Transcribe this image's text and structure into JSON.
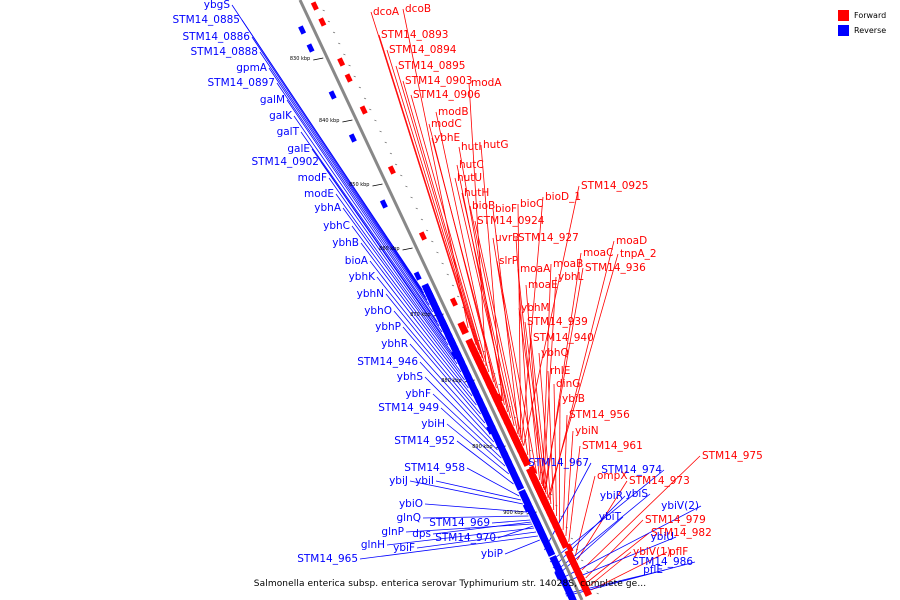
{
  "caption": "Salmonella enterica subsp. enterica serovar Typhimurium str. 14028S, complete ge...",
  "legend": {
    "forward_label": "Forward",
    "reverse_label": "Reverse",
    "forward_color": "#ff0000",
    "reverse_color": "#0000ff"
  },
  "axis": {
    "unit": "kbp",
    "ticks": [
      "830 kbp",
      "840 kbp",
      "850 kbp",
      "860 kbp",
      "870 kbp",
      "880 kbp",
      "890 kbp",
      "900 kbp"
    ]
  },
  "forward_genes": [
    "dcoA",
    "dcoB",
    "STM14_0893",
    "STM14_0894",
    "STM14_0895",
    "STM14_0903",
    "modA",
    "STM14_0906",
    "modB",
    "modC",
    "ybhE",
    "hutI",
    "hutG",
    "hutC",
    "hutU",
    "hutH",
    "STM14_0925",
    "bioD_1",
    "bioC",
    "bioF",
    "bioB",
    "STM14_0924",
    "uvrB",
    "STM14_927",
    "moaD",
    "tnpA_2",
    "moaC",
    "moaB",
    "STM14_936",
    "slrP",
    "moaA",
    "ybhL",
    "moaE",
    "ybhM",
    "STM14_939",
    "STM14_940",
    "ybhQ",
    "rhlE",
    "dinG",
    "ybiB",
    "STM14_956",
    "ybiN",
    "STM14_961",
    "STM14_975",
    "ompX",
    "STM14_973",
    "STM14_979",
    "STM14_982",
    "ybiV(1)",
    "pflF"
  ],
  "reverse_genes": [
    "ybgS",
    "STM14_0885",
    "STM14_0886",
    "STM14_0888",
    "gpmA",
    "STM14_0897",
    "galM",
    "galK",
    "galT",
    "galE",
    "STM14_0902",
    "modF",
    "modE",
    "ybhA",
    "ybhC",
    "ybhB",
    "bioA",
    "ybhK",
    "ybhN",
    "ybhO",
    "ybhP",
    "ybhR",
    "STM14_946",
    "ybhS",
    "ybhF",
    "STM14_949",
    "ybiH",
    "STM14_952",
    "STM14_958",
    "ybiI",
    "ybiJ",
    "ybiO",
    "glnQ",
    "STM14_969",
    "dps",
    "STM14_970",
    "glnP",
    "glnH",
    "ybiF",
    "STM14_965",
    "ybiP",
    "STM14_967",
    "STM14_974",
    "ybiR",
    "ybiS",
    "ybiT",
    "ybiV(2)",
    "ybiU",
    "pflE",
    "STM14_986"
  ]
}
